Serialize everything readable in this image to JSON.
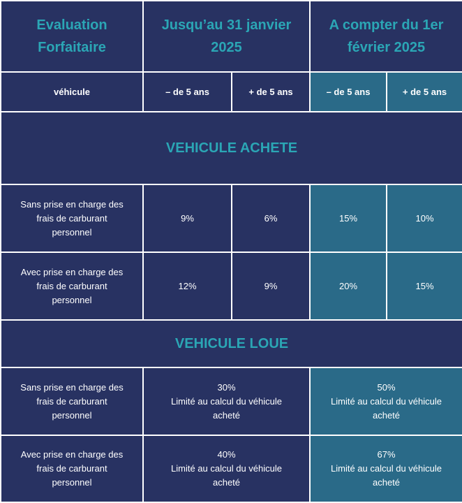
{
  "header": {
    "col0": [
      "Evaluation",
      "Forfaitaire"
    ],
    "col1": [
      "Jusqu’au 31 janvier",
      "2025"
    ],
    "col2": [
      "A compter du 1er",
      "février 2025"
    ]
  },
  "subheader": {
    "vehicle": "véhicule",
    "less5_a": "– de 5 ans",
    "more5_a": "+ de 5 ans",
    "less5_b": "– de 5 ans",
    "more5_b": "+ de 5 ans"
  },
  "achete": {
    "title": "VEHICULE ACHETE",
    "rows": [
      {
        "label": [
          "Sans prise en charge des",
          "frais de carburant",
          "personnel"
        ],
        "values": [
          "9%",
          "6%",
          "15%",
          "10%"
        ]
      },
      {
        "label": [
          "Avec prise en charge des",
          "frais de carburant",
          "personnel"
        ],
        "values": [
          "12%",
          "9%",
          "20%",
          "15%"
        ]
      }
    ]
  },
  "loue": {
    "title": "VEHICULE LOUE",
    "rows": [
      {
        "label": [
          "Sans prise en charge des",
          "frais de carburant",
          "personnel"
        ],
        "before": [
          "30%",
          "Limité au calcul du véhicule",
          "acheté"
        ],
        "after": [
          "50%",
          "Limité au calcul du véhicule",
          "acheté"
        ]
      },
      {
        "label": [
          "Avec prise en charge des",
          "frais de carburant",
          "personnel"
        ],
        "before": [
          "40%",
          "Limité au calcul du véhicule",
          "acheté"
        ],
        "after": [
          "67%",
          "Limité au calcul du véhicule",
          "acheté"
        ]
      }
    ]
  },
  "colors": {
    "navy": "#283262",
    "teal": "#2a6a88",
    "accent_text": "#2ba6b5",
    "border": "#ffffff"
  }
}
